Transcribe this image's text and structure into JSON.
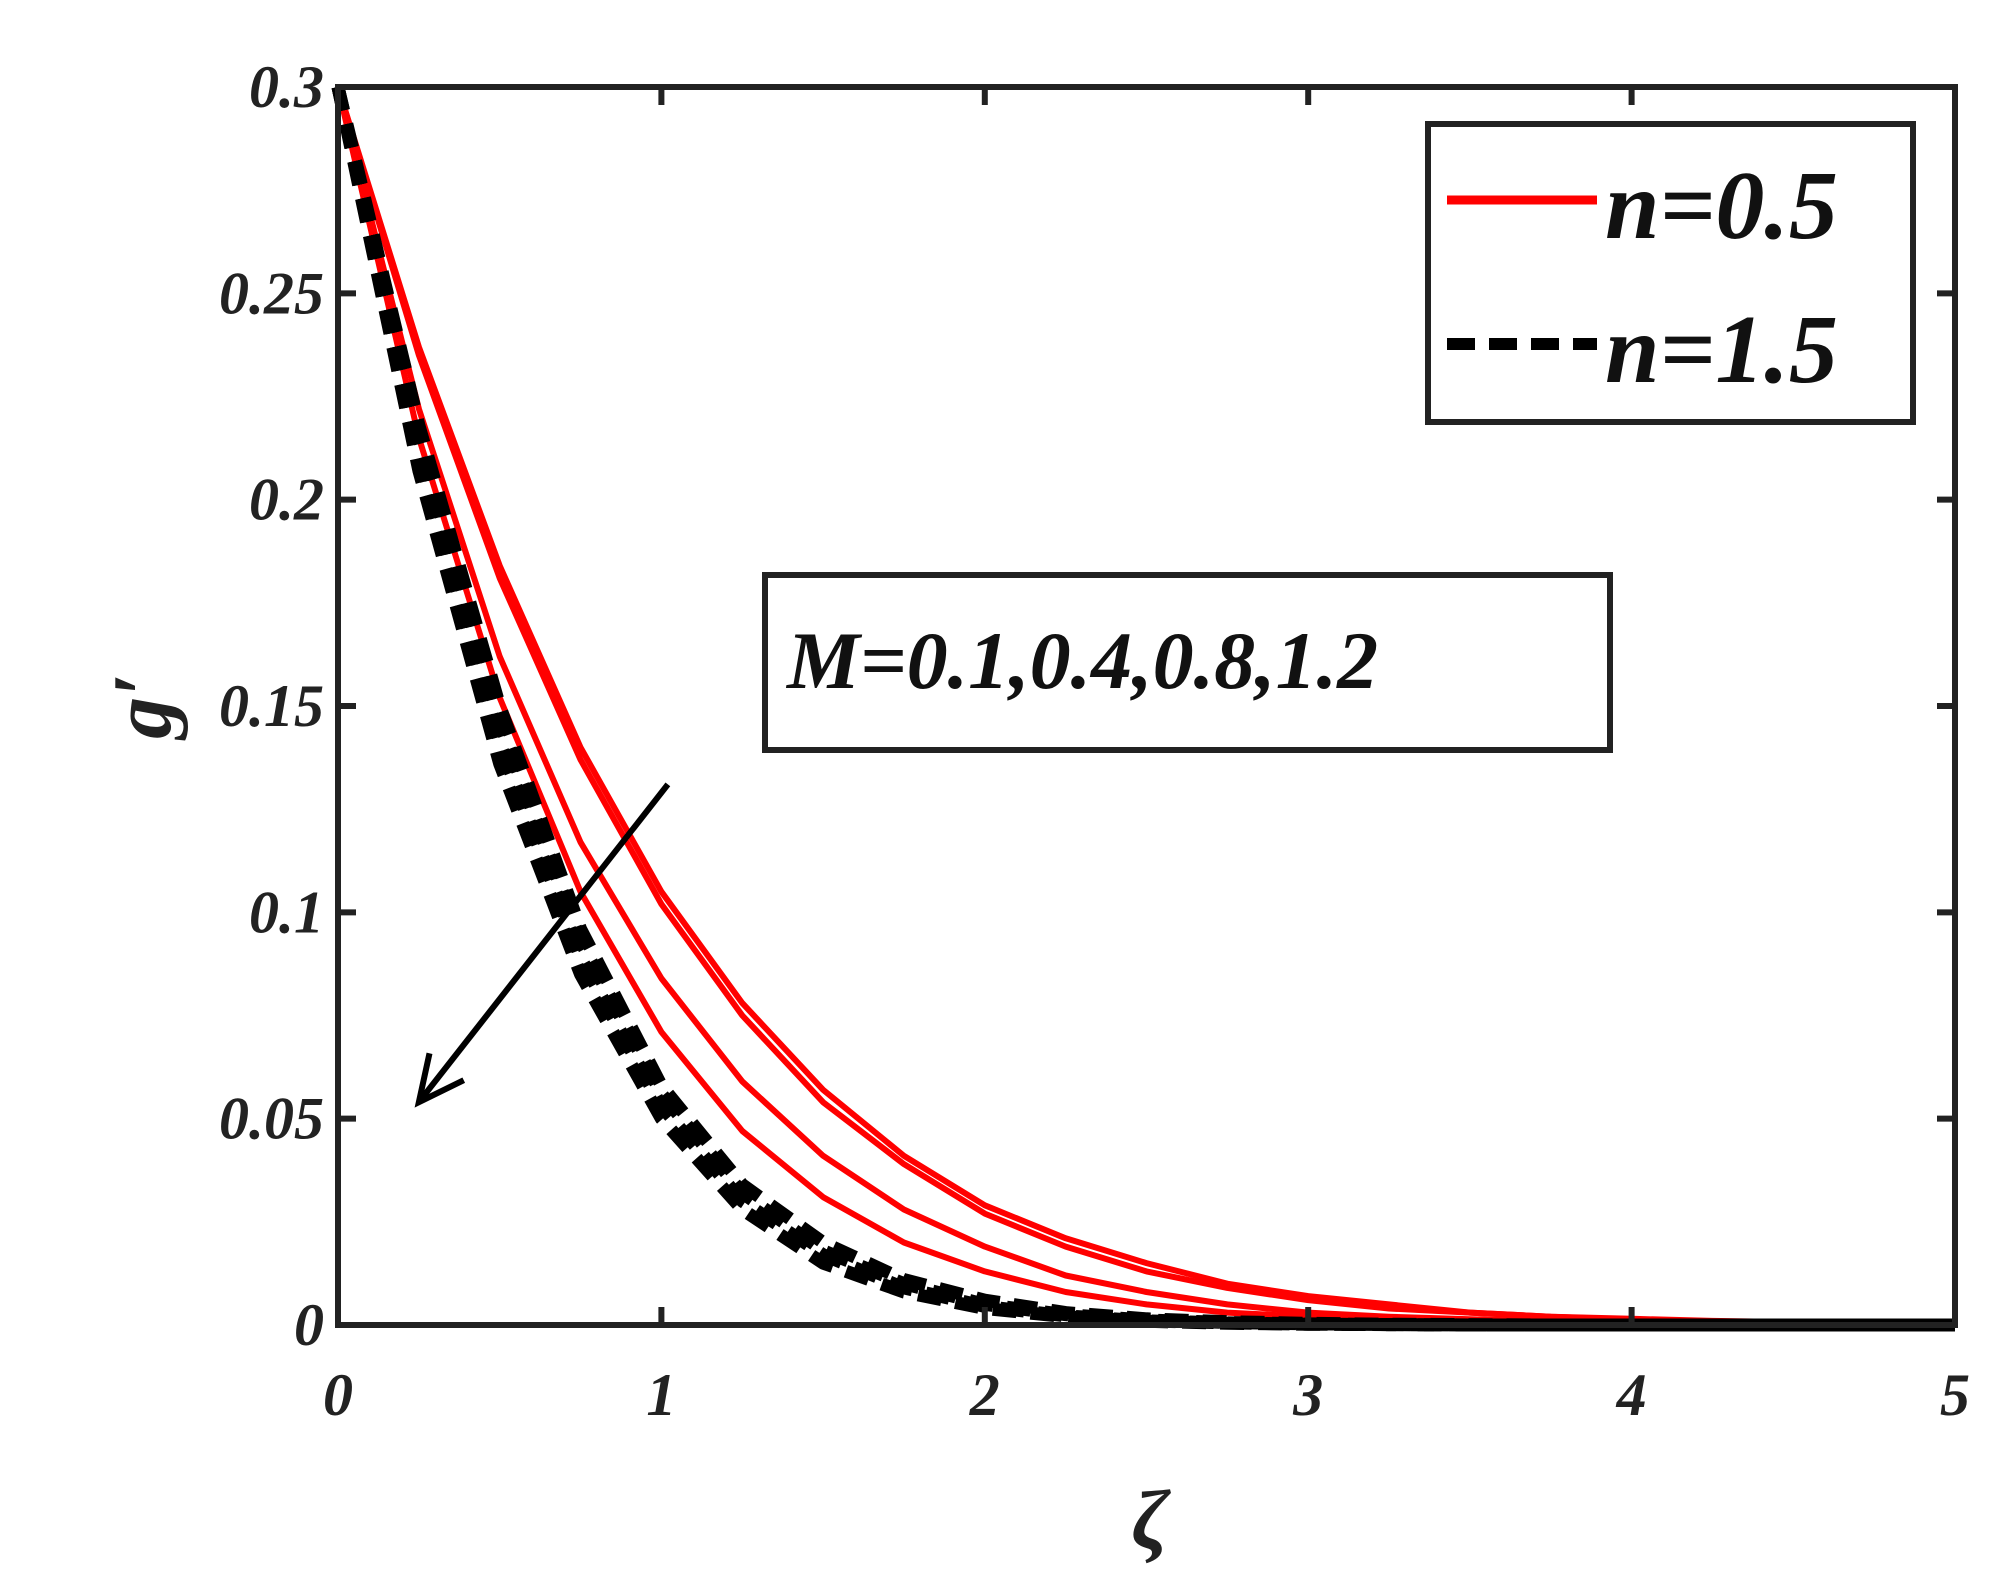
{
  "chart_data": {
    "type": "line",
    "title": "",
    "xlabel": "ζ",
    "ylabel": "g′",
    "xlim": [
      0,
      5
    ],
    "ylim": [
      0,
      0.3
    ],
    "xticks": [
      0,
      1,
      2,
      3,
      4,
      5
    ],
    "xtick_labels": [
      "0",
      "1",
      "2",
      "3",
      "4",
      "5"
    ],
    "yticks": [
      0,
      0.05,
      0.1,
      0.15,
      0.2,
      0.25,
      0.3
    ],
    "ytick_labels": [
      "0",
      "0.05",
      "0.1",
      "0.15",
      "0.2",
      "0.25",
      "0.3"
    ],
    "grid": false,
    "legend_position": "top-right",
    "annotation": "M=0.1,0.4,0.8,1.2",
    "arrow": {
      "from": [
        1.02,
        0.131
      ],
      "to": [
        0.25,
        0.054
      ]
    },
    "x": [
      0,
      0.25,
      0.5,
      0.75,
      1,
      1.25,
      1.5,
      1.75,
      2,
      2.25,
      2.5,
      2.75,
      3,
      3.25,
      3.5,
      3.75,
      4,
      4.25,
      4.5,
      4.75,
      5
    ],
    "series": [
      {
        "name": "n=0.5",
        "group": "n05",
        "style": "solid",
        "color": "#ff0000",
        "values": [
          0.3,
          0.237,
          0.184,
          0.14,
          0.105,
          0.078,
          0.057,
          0.041,
          0.029,
          0.021,
          0.015,
          0.01,
          0.007,
          0.005,
          0.003,
          0.002,
          0.0015,
          0.001,
          0.0007,
          0.0004,
          0.0002
        ]
      },
      {
        "name": "",
        "group": "n05",
        "style": "solid",
        "color": "#ff0000",
        "values": [
          0.3,
          0.235,
          0.181,
          0.137,
          0.102,
          0.075,
          0.054,
          0.039,
          0.027,
          0.019,
          0.013,
          0.009,
          0.006,
          0.004,
          0.003,
          0.002,
          0.0013,
          0.0009,
          0.0006,
          0.0004,
          0.0002
        ]
      },
      {
        "name": "",
        "group": "n05",
        "style": "solid",
        "color": "#ff0000",
        "values": [
          0.3,
          0.222,
          0.162,
          0.117,
          0.084,
          0.059,
          0.041,
          0.028,
          0.019,
          0.012,
          0.008,
          0.005,
          0.003,
          0.002,
          0.0014,
          0.0009,
          0.0006,
          0.0004,
          0.0002,
          0.0001,
          0.0001
        ]
      },
      {
        "name": "",
        "group": "n05",
        "style": "solid",
        "color": "#ff0000",
        "values": [
          0.3,
          0.215,
          0.152,
          0.105,
          0.071,
          0.047,
          0.031,
          0.02,
          0.013,
          0.008,
          0.005,
          0.003,
          0.002,
          0.001,
          0.0007,
          0.0004,
          0.0003,
          0.0002,
          0.0001,
          0.0001,
          0
        ]
      },
      {
        "name": "n=1.5",
        "group": "n15",
        "style": "dashed",
        "color": "#000000",
        "values": [
          0.3,
          0.218,
          0.15,
          0.096,
          0.058,
          0.034,
          0.02,
          0.011,
          0.006,
          0.003,
          0.0015,
          0.0008,
          0.0004,
          0.0002,
          0.0001,
          0,
          0,
          0,
          0,
          0,
          0
        ]
      },
      {
        "name": "",
        "group": "n15",
        "style": "dashed",
        "color": "#000000",
        "values": [
          0.3,
          0.215,
          0.146,
          0.093,
          0.056,
          0.032,
          0.018,
          0.01,
          0.005,
          0.0025,
          0.0012,
          0.0006,
          0.0003,
          0.0001,
          0,
          0,
          0,
          0,
          0,
          0,
          0
        ]
      },
      {
        "name": "",
        "group": "n15",
        "style": "dashed",
        "color": "#000000",
        "values": [
          0.3,
          0.211,
          0.141,
          0.089,
          0.053,
          0.03,
          0.017,
          0.009,
          0.0045,
          0.0022,
          0.001,
          0.0005,
          0.0002,
          0.0001,
          0,
          0,
          0,
          0,
          0,
          0,
          0
        ]
      },
      {
        "name": "",
        "group": "n15",
        "style": "dashed",
        "color": "#000000",
        "values": [
          0.3,
          0.207,
          0.136,
          0.085,
          0.05,
          0.028,
          0.015,
          0.008,
          0.004,
          0.002,
          0.0009,
          0.0004,
          0.0002,
          0.0001,
          0,
          0,
          0,
          0,
          0,
          0,
          0
        ]
      }
    ],
    "legend": [
      {
        "label": "n=0.5",
        "style": "solid",
        "color": "#ff0000"
      },
      {
        "label": "n=1.5",
        "style": "dashed",
        "color": "#000000"
      }
    ]
  }
}
